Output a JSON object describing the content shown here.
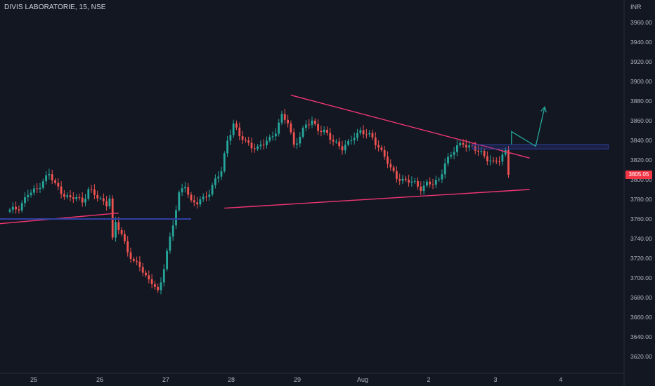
{
  "chart_header": {
    "symbol_title": "DIVIS LABORATORIE, 15, NSE",
    "price_unit": "INR"
  },
  "last_price_label": "3805.05",
  "colors": {
    "background": "#131722",
    "up_candle": "#26a69a",
    "down_candle": "#ef5350",
    "trendline": "#f23673",
    "support_line": "#2e3fa3",
    "arrow": "#26a69a",
    "price_tag": "#f23645"
  },
  "chart_data": {
    "type": "candlestick",
    "title": "DIVIS LABORATORIE, 15, NSE",
    "y_unit": "INR",
    "ylim": [
      3605,
      3990
    ],
    "yticks": [
      "3620.00",
      "3640.00",
      "3660.00",
      "3680.00",
      "3700.00",
      "3720.00",
      "3740.00",
      "3760.00",
      "3780.00",
      "3800.00",
      "3820.00",
      "3840.00",
      "3860.00",
      "3880.00",
      "3900.00",
      "3920.00",
      "3940.00",
      "3960.00"
    ],
    "xticks": [
      "25",
      "26",
      "27",
      "28",
      "29",
      "Aug",
      "2",
      "3",
      "4"
    ],
    "grid": false,
    "last_price": 3805.05,
    "ohlc_anchor_closes": [
      [
        0,
        3768
      ],
      [
        3,
        3772
      ],
      [
        6,
        3785
      ],
      [
        9,
        3790
      ],
      [
        11,
        3800
      ],
      [
        13,
        3805
      ],
      [
        15,
        3795
      ],
      [
        17,
        3788
      ],
      [
        20,
        3780
      ],
      [
        22,
        3782
      ],
      [
        24,
        3778
      ],
      [
        26,
        3790
      ],
      [
        28,
        3784
      ],
      [
        30,
        3780
      ],
      [
        32,
        3776
      ],
      [
        33,
        3782
      ],
      [
        34,
        3738
      ],
      [
        35,
        3755
      ],
      [
        37,
        3745
      ],
      [
        39,
        3728
      ],
      [
        41,
        3715
      ],
      [
        43,
        3712
      ],
      [
        45,
        3702
      ],
      [
        47,
        3696
      ],
      [
        49,
        3684
      ],
      [
        50,
        3695
      ],
      [
        52,
        3728
      ],
      [
        54,
        3755
      ],
      [
        56,
        3784
      ],
      [
        58,
        3795
      ],
      [
        60,
        3778
      ],
      [
        62,
        3776
      ],
      [
        64,
        3780
      ],
      [
        66,
        3788
      ],
      [
        68,
        3800
      ],
      [
        70,
        3808
      ],
      [
        72,
        3840
      ],
      [
        74,
        3858
      ],
      [
        76,
        3844
      ],
      [
        78,
        3838
      ],
      [
        80,
        3835
      ],
      [
        82,
        3832
      ],
      [
        84,
        3836
      ],
      [
        86,
        3842
      ],
      [
        88,
        3850
      ],
      [
        90,
        3864
      ],
      [
        92,
        3858
      ],
      [
        94,
        3836
      ],
      [
        96,
        3844
      ],
      [
        98,
        3855
      ],
      [
        100,
        3860
      ],
      [
        102,
        3852
      ],
      [
        104,
        3848
      ],
      [
        106,
        3842
      ],
      [
        108,
        3838
      ],
      [
        110,
        3832
      ],
      [
        112,
        3836
      ],
      [
        114,
        3845
      ],
      [
        116,
        3850
      ],
      [
        118,
        3846
      ],
      [
        120,
        3842
      ],
      [
        122,
        3834
      ],
      [
        124,
        3824
      ],
      [
        126,
        3810
      ],
      [
        128,
        3803
      ],
      [
        130,
        3800
      ],
      [
        132,
        3798
      ],
      [
        134,
        3796
      ],
      [
        136,
        3792
      ],
      [
        138,
        3796
      ],
      [
        140,
        3795
      ],
      [
        142,
        3800
      ],
      [
        144,
        3818
      ],
      [
        146,
        3824
      ],
      [
        148,
        3834
      ],
      [
        150,
        3838
      ],
      [
        152,
        3833
      ],
      [
        154,
        3830
      ],
      [
        156,
        3828
      ],
      [
        158,
        3822
      ],
      [
        160,
        3816
      ],
      [
        162,
        3820
      ],
      [
        164,
        3830
      ],
      [
        165,
        3805
      ]
    ],
    "drawings": [
      {
        "type": "trendline",
        "name": "descending resistance",
        "from": [
          93,
          3886
        ],
        "to": [
          172,
          3822
        ]
      },
      {
        "type": "trendline",
        "name": "ascending support",
        "from": [
          71,
          3771
        ],
        "to": [
          172,
          3790
        ]
      },
      {
        "type": "trendline",
        "name": "early rising line",
        "from": [
          -4,
          3755
        ],
        "to": [
          36,
          3766
        ]
      },
      {
        "type": "horizontal",
        "name": "support zone",
        "value": 3760,
        "from": -4,
        "to": 60
      },
      {
        "type": "box",
        "name": "breakout zone",
        "from": 153,
        "to": 198,
        "low": 3832,
        "high": 3835
      },
      {
        "type": "arrow",
        "name": "projection",
        "points": [
          [
            166,
            3836
          ],
          [
            166,
            3849
          ],
          [
            174,
            3834
          ],
          [
            177,
            3874
          ]
        ]
      }
    ]
  }
}
